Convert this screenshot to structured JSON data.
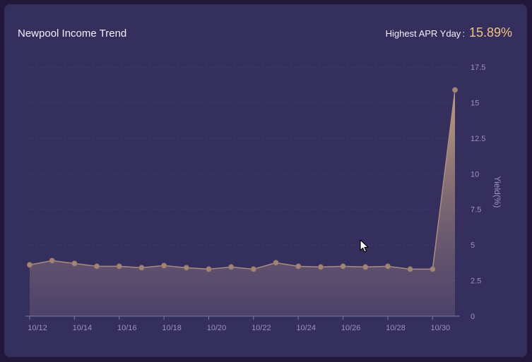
{
  "card": {
    "title": "Newpool Income Trend",
    "apr_label": "Highest APR Yday",
    "apr_colon": ":",
    "apr_value": "15.89%"
  },
  "colors": {
    "background": "#22183a",
    "card": "#352f5e",
    "accent": "#f1c27d",
    "line": "#a98d7e",
    "axis_text": "#9a93c6",
    "grid": "#433d6f"
  },
  "chart_data": {
    "type": "area",
    "title": "",
    "ylabel": "Yield(%)",
    "xlabel": "",
    "y_axis_position": "right",
    "ylim": [
      0,
      17.5
    ],
    "yticks": [
      0,
      2.5,
      5,
      7.5,
      10,
      12.5,
      15,
      17.5
    ],
    "ytick_labels": [
      "0",
      "2.5",
      "5",
      "7.5",
      "10",
      "12.5",
      "15",
      "17.5"
    ],
    "grid": true,
    "x": [
      "10/12",
      "10/13",
      "10/14",
      "10/15",
      "10/16",
      "10/17",
      "10/18",
      "10/19",
      "10/20",
      "10/21",
      "10/22",
      "10/23",
      "10/24",
      "10/25",
      "10/26",
      "10/27",
      "10/28",
      "10/29",
      "10/30",
      "10/31"
    ],
    "xtick_labels": [
      "10/12",
      "10/14",
      "10/16",
      "10/18",
      "10/20",
      "10/22",
      "10/24",
      "10/26",
      "10/28",
      "10/30"
    ],
    "series": [
      {
        "values": [
          3.6,
          3.9,
          3.7,
          3.5,
          3.5,
          3.4,
          3.55,
          3.4,
          3.3,
          3.45,
          3.3,
          3.75,
          3.5,
          3.45,
          3.5,
          3.45,
          3.5,
          3.3,
          3.3,
          15.89
        ]
      }
    ]
  }
}
